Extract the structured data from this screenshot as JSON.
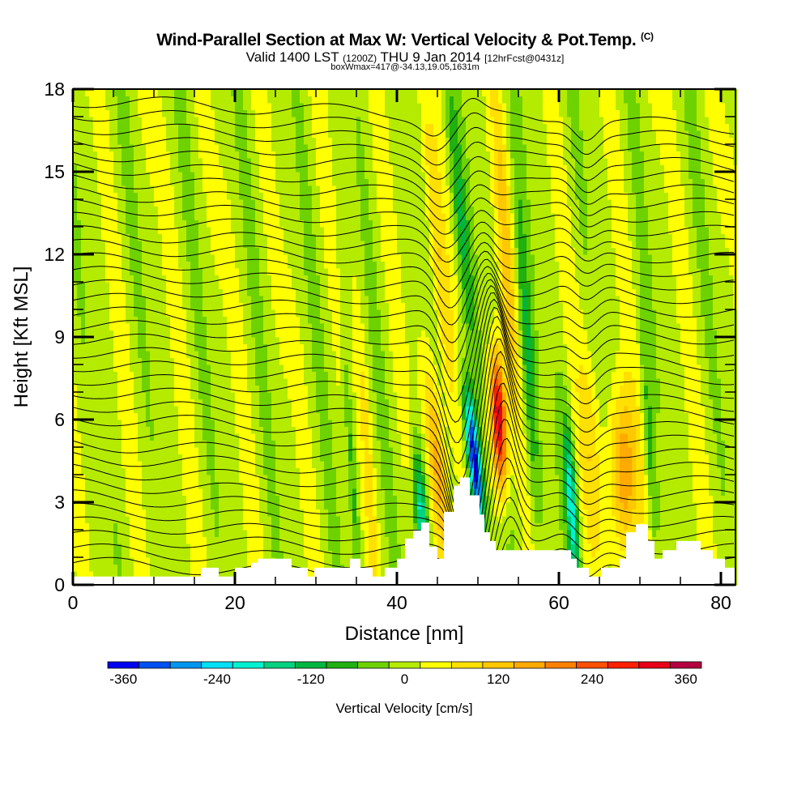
{
  "header": {
    "title": "Wind-Parallel Section at Max W: Vertical Velocity & Pot.Temp.",
    "copyright": "(C)",
    "valid_prefix": "Valid 1400 LST",
    "valid_utc": "(1200Z)",
    "valid_date": "THU 9 Jan 2014",
    "forecast": "[12hrFcst@0431z]",
    "box_info": "boxWmax=417@-34.13,19.05,1631m"
  },
  "chart_data": {
    "type": "heatmap",
    "title": "Wind-Parallel Section at Max W: Vertical Velocity & Pot.Temp.",
    "xlabel": "Distance [nm]",
    "ylabel": "Height [Kft MSL]",
    "xlim": [
      0,
      81.8
    ],
    "ylim": [
      0,
      18
    ],
    "xticks": [
      "0",
      "20",
      "40",
      "60",
      "80"
    ],
    "xtick_values": [
      0,
      20,
      40,
      60,
      80
    ],
    "yticks": [
      "0",
      "3",
      "6",
      "9",
      "12",
      "15",
      "18"
    ],
    "ytick_values": [
      0,
      3,
      6,
      9,
      12,
      15,
      18
    ],
    "colorbar": {
      "label": "Vertical Velocity [cm/s]",
      "min": -380,
      "step": 40,
      "tick_labels": [
        "-360",
        "-240",
        "-120",
        "0",
        "120",
        "240",
        "360"
      ],
      "tick_values": [
        -360,
        -240,
        -120,
        0,
        120,
        240,
        360
      ],
      "colors": [
        "#0000f0",
        "#0050f0",
        "#0096f0",
        "#00e0f6",
        "#00f0d0",
        "#00d280",
        "#00b640",
        "#20b010",
        "#6ed200",
        "#b4eb00",
        "#ffff00",
        "#ffe000",
        "#ffc800",
        "#ffaa00",
        "#ff8000",
        "#ff5000",
        "#ff2000",
        "#e80018",
        "#b40040"
      ]
    },
    "w_background": {
      "mean": 5,
      "amplitude": 28,
      "period_nm": 7
    },
    "w_features": [
      {
        "x": 43.0,
        "z": 2.5,
        "w": -220,
        "sx": 0.8,
        "sz": 2.5,
        "tilt": -0.2
      },
      {
        "x": 45.2,
        "z": 4.0,
        "w": 170,
        "sx": 1.1,
        "sz": 4.0,
        "tilt": -0.3
      },
      {
        "x": 45.0,
        "z": 12.0,
        "w": 90,
        "sx": 1.0,
        "sz": 6.0,
        "tilt": -0.3
      },
      {
        "x": 49.6,
        "z": 4.5,
        "w": -400,
        "sx": 0.8,
        "sz": 2.5,
        "tilt": -0.35
      },
      {
        "x": 48.0,
        "z": 13.0,
        "w": -110,
        "sx": 0.9,
        "sz": 5.0,
        "tilt": -0.3
      },
      {
        "x": 52.6,
        "z": 6.0,
        "w": 370,
        "sx": 0.9,
        "sz": 2.5,
        "tilt": -0.15
      },
      {
        "x": 53.5,
        "z": 12.0,
        "w": 90,
        "sx": 0.9,
        "sz": 6.0,
        "tilt": -0.2
      },
      {
        "x": 56.2,
        "z": 8.0,
        "w": -120,
        "sx": 0.8,
        "sz": 6.0,
        "tilt": -0.2
      },
      {
        "x": 61.5,
        "z": 3.0,
        "w": -200,
        "sx": 0.7,
        "sz": 3.0,
        "tilt": -0.2
      },
      {
        "x": 64.0,
        "z": 5.0,
        "w": 80,
        "sx": 1.2,
        "sz": 4.0,
        "tilt": -0.2
      },
      {
        "x": 68.0,
        "z": 4.0,
        "w": 190,
        "sx": 1.6,
        "sz": 3.0,
        "tilt": -0.1
      },
      {
        "x": 71.2,
        "z": 5.0,
        "w": -90,
        "sx": 0.6,
        "sz": 4.0,
        "tilt": -0.2
      },
      {
        "x": 36.5,
        "z": 4.0,
        "w": 70,
        "sx": 0.6,
        "sz": 6.0,
        "tilt": -0.2
      },
      {
        "x": 34.5,
        "z": 4.0,
        "w": -90,
        "sx": 0.5,
        "sz": 5.0,
        "tilt": -0.2
      }
    ],
    "terrain_kft": [
      [
        0,
        0.3
      ],
      [
        15.8,
        0.3
      ],
      [
        15.8,
        0.62
      ],
      [
        18,
        0.62
      ],
      [
        18,
        0.3
      ],
      [
        20,
        0.3
      ],
      [
        20,
        0.62
      ],
      [
        22,
        0.62
      ],
      [
        22,
        0.8
      ],
      [
        22.8,
        0.8
      ],
      [
        22.8,
        0.95
      ],
      [
        27,
        0.95
      ],
      [
        27,
        0.62
      ],
      [
        29,
        0.62
      ],
      [
        29,
        0.3
      ],
      [
        29.8,
        0.3
      ],
      [
        29.8,
        0.62
      ],
      [
        34.2,
        0.62
      ],
      [
        34.2,
        0.95
      ],
      [
        35.5,
        0.95
      ],
      [
        35.5,
        0.62
      ],
      [
        37,
        0.62
      ],
      [
        37,
        0.3
      ],
      [
        38.5,
        0.3
      ],
      [
        38.5,
        0.62
      ],
      [
        40,
        0.62
      ],
      [
        40,
        0.95
      ],
      [
        41,
        0.95
      ],
      [
        41,
        1.68
      ],
      [
        42,
        1.68
      ],
      [
        42,
        1.97
      ],
      [
        43,
        1.97
      ],
      [
        43,
        2.26
      ],
      [
        44,
        2.26
      ],
      [
        44,
        1.38
      ],
      [
        45,
        1.38
      ],
      [
        45,
        0.95
      ],
      [
        45.8,
        0.95
      ],
      [
        45.8,
        2.65
      ],
      [
        47,
        2.65
      ],
      [
        47,
        3.6
      ],
      [
        47.8,
        3.6
      ],
      [
        47.8,
        3.9
      ],
      [
        49,
        3.9
      ],
      [
        49,
        3.25
      ],
      [
        50.2,
        3.25
      ],
      [
        50.2,
        2.55
      ],
      [
        50.8,
        2.55
      ],
      [
        50.8,
        1.91
      ],
      [
        51.5,
        1.91
      ],
      [
        51.5,
        1.59
      ],
      [
        52.2,
        1.59
      ],
      [
        52.2,
        1.26
      ],
      [
        61.5,
        1.26
      ],
      [
        61.5,
        0.95
      ],
      [
        62.2,
        0.95
      ],
      [
        62.2,
        0.62
      ],
      [
        63.7,
        0.62
      ],
      [
        63.7,
        0.3
      ],
      [
        65.2,
        0.3
      ],
      [
        65.2,
        0.62
      ],
      [
        67.5,
        0.62
      ],
      [
        67.5,
        0.95
      ],
      [
        68.3,
        0.95
      ],
      [
        68.3,
        1.91
      ],
      [
        69.5,
        1.91
      ],
      [
        69.5,
        2.2
      ],
      [
        71,
        2.2
      ],
      [
        71,
        1.59
      ],
      [
        71.8,
        1.59
      ],
      [
        71.8,
        0.95
      ],
      [
        72.8,
        0.95
      ],
      [
        72.8,
        1.26
      ],
      [
        74.5,
        1.26
      ],
      [
        74.5,
        1.59
      ],
      [
        77.5,
        1.59
      ],
      [
        77.5,
        1.26
      ],
      [
        79,
        1.26
      ],
      [
        79,
        0.95
      ],
      [
        80.5,
        0.95
      ],
      [
        80.5,
        0.62
      ],
      [
        81.8,
        0.62
      ]
    ],
    "theta_contours": {
      "count": 36,
      "lowest_kft": 0.8,
      "spacing_kft": 0.48,
      "descent_center_nm": 48.5,
      "descent_kft": 3.0
    }
  }
}
